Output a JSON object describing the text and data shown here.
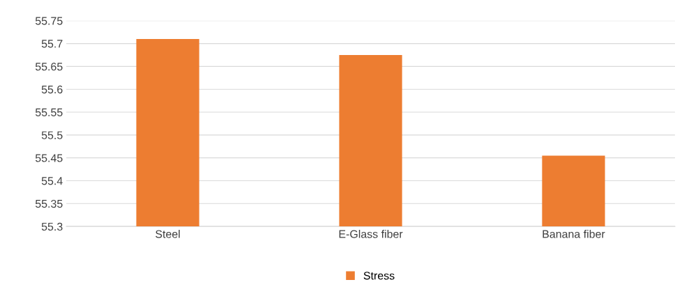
{
  "chart_data": {
    "type": "bar",
    "categories": [
      "Steel",
      "E-Glass fiber",
      "Banana fiber"
    ],
    "series": [
      {
        "name": "Stress",
        "color": "#ed7d31",
        "values": [
          55.71,
          55.675,
          55.455
        ]
      }
    ],
    "ylim": [
      55.3,
      55.75
    ],
    "yticks": [
      {
        "value": 55.3,
        "label": "55.3"
      },
      {
        "value": 55.35,
        "label": "55.35"
      },
      {
        "value": 55.4,
        "label": "55.4"
      },
      {
        "value": 55.45,
        "label": "55.45"
      },
      {
        "value": 55.5,
        "label": "55.5"
      },
      {
        "value": 55.55,
        "label": "55.55"
      },
      {
        "value": 55.6,
        "label": "55.6"
      },
      {
        "value": 55.65,
        "label": "55.65"
      },
      {
        "value": 55.7,
        "label": "55.7"
      },
      {
        "value": 55.75,
        "label": "55.75"
      }
    ],
    "grid": "y",
    "legend": "bottom"
  }
}
